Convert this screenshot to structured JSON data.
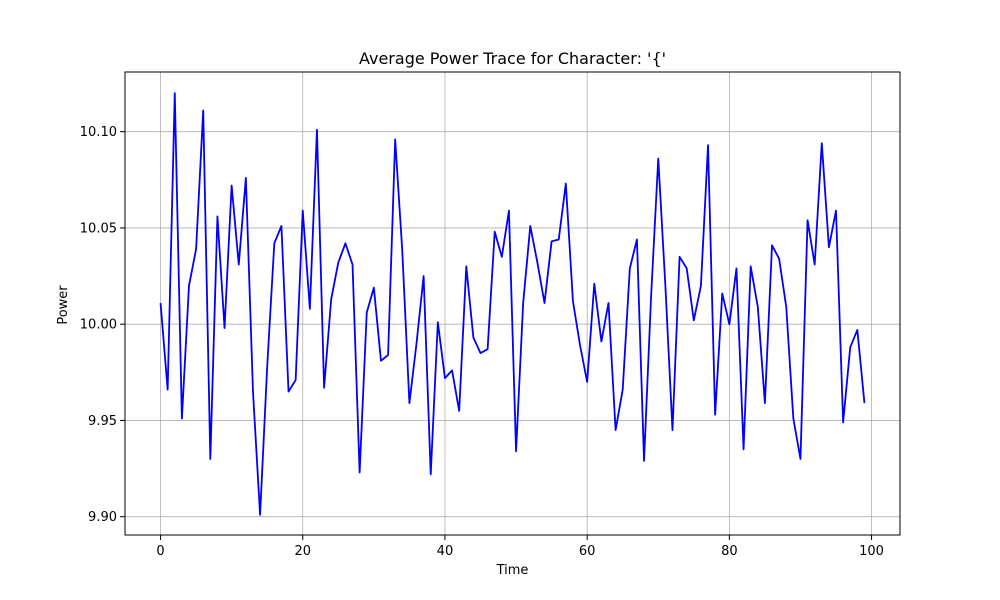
{
  "chart_data": {
    "type": "line",
    "title": "Average Power Trace for Character: '{'",
    "xlabel": "Time",
    "ylabel": "Power",
    "xlim": [
      -5,
      104
    ],
    "ylim": [
      9.8905,
      10.131
    ],
    "xticks": [
      0,
      20,
      40,
      60,
      80,
      100
    ],
    "xtick_labels": [
      "0",
      "20",
      "40",
      "60",
      "80",
      "100"
    ],
    "yticks": [
      9.9,
      9.95,
      10.0,
      10.05,
      10.1
    ],
    "ytick_labels": [
      "9.90",
      "9.95",
      "10.00",
      "10.05",
      "10.10"
    ],
    "grid": true,
    "line_color": "#0000ff",
    "series": [
      {
        "x": [
          0,
          1,
          2,
          3,
          4,
          5,
          6,
          7,
          8,
          9,
          10,
          11,
          12,
          13,
          14,
          15,
          16,
          17,
          18,
          19,
          20,
          21,
          22,
          23,
          24,
          25,
          26,
          27,
          28,
          29,
          30,
          31,
          32,
          33,
          34,
          35,
          36,
          37,
          38,
          39,
          40,
          41,
          42,
          43,
          44,
          45,
          46,
          47,
          48,
          49,
          50,
          51,
          52,
          53,
          54,
          55,
          56,
          57,
          58,
          59,
          60,
          61,
          62,
          63,
          64,
          65,
          66,
          67,
          68,
          69,
          70,
          71,
          72,
          73,
          74,
          75,
          76,
          77,
          78,
          79,
          80,
          81,
          82,
          83,
          84,
          85,
          86,
          87,
          88,
          89,
          90,
          91,
          92,
          93,
          94,
          95,
          96,
          97,
          98,
          99
        ],
        "values": [
          10.011,
          9.966,
          10.12,
          9.951,
          10.02,
          10.039,
          10.111,
          9.93,
          10.056,
          9.998,
          10.072,
          10.031,
          10.076,
          9.965,
          9.901,
          9.978,
          10.042,
          10.051,
          9.965,
          9.971,
          10.059,
          10.008,
          10.101,
          9.967,
          10.013,
          10.032,
          10.042,
          10.031,
          9.923,
          10.006,
          10.019,
          9.981,
          9.984,
          10.096,
          10.038,
          9.959,
          9.99,
          10.025,
          9.922,
          10.001,
          9.972,
          9.976,
          9.955,
          10.03,
          9.993,
          9.985,
          9.987,
          10.048,
          10.035,
          10.059,
          9.934,
          10.011,
          10.051,
          10.032,
          10.011,
          10.043,
          10.044,
          10.073,
          10.012,
          9.989,
          9.97,
          10.021,
          9.991,
          10.011,
          9.945,
          9.966,
          10.029,
          10.044,
          9.929,
          10.015,
          10.086,
          10.02,
          9.945,
          10.035,
          10.029,
          10.002,
          10.02,
          10.093,
          9.953,
          10.016,
          10.0,
          10.029,
          9.935,
          10.03,
          10.009,
          9.959,
          10.041,
          10.034,
          10.009,
          9.951,
          9.93,
          10.054,
          10.031,
          10.094,
          10.04,
          10.059,
          9.949,
          9.988,
          9.997,
          9.959
        ]
      }
    ]
  }
}
